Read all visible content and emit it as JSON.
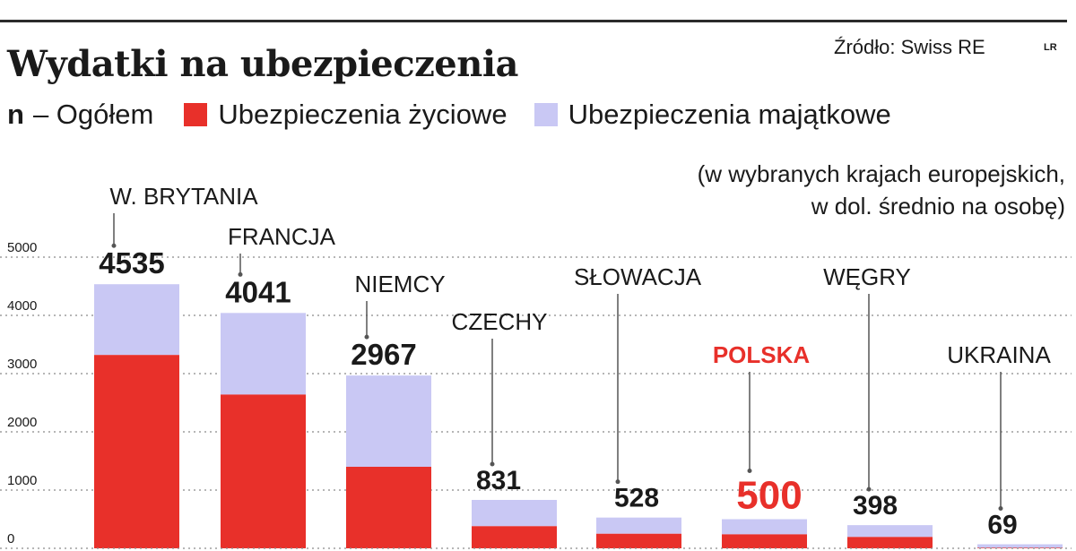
{
  "header": {
    "title": "Wydatki na ubezpieczenia",
    "source": "Źródło: Swiss RE",
    "logo": "LR"
  },
  "legend": {
    "total_symbol": "n",
    "total_label": "– Ogółem",
    "life_label": "Ubezpieczenia życiowe",
    "property_label": "Ubezpieczenia majątkowe"
  },
  "note": {
    "line1": "(w wybranych krajach europejskich,",
    "line2": "w dol. średnio na osobę)"
  },
  "colors": {
    "life": "#e8302a",
    "property": "#c9c8f4",
    "highlight": "#e8302a",
    "text": "#1a1a1a",
    "grid": "#8a8a8a"
  },
  "chart_data": {
    "type": "bar",
    "stacked": true,
    "categories": [
      "W. BRYTANIA",
      "FRANCJA",
      "NIEMCY",
      "CZECHY",
      "SŁOWACJA",
      "POLSKA",
      "WĘGRY",
      "UKRAINA"
    ],
    "total_labels": [
      "4535",
      "4041",
      "2967",
      "831",
      "528",
      "500",
      "398",
      "69"
    ],
    "highlight": "POLSKA",
    "series": [
      {
        "name": "Ubezpieczenia życiowe",
        "values": [
          3320,
          2640,
          1400,
          380,
          250,
          240,
          195,
          10
        ]
      },
      {
        "name": "Ubezpieczenia majątkowe",
        "values": [
          1215,
          1401,
          1567,
          451,
          278,
          260,
          203,
          59
        ]
      }
    ],
    "y_ticks": [
      "5000",
      "4000",
      "3000",
      "2000",
      "1000",
      "0"
    ],
    "ylim": [
      0,
      5000
    ],
    "grid": true
  }
}
